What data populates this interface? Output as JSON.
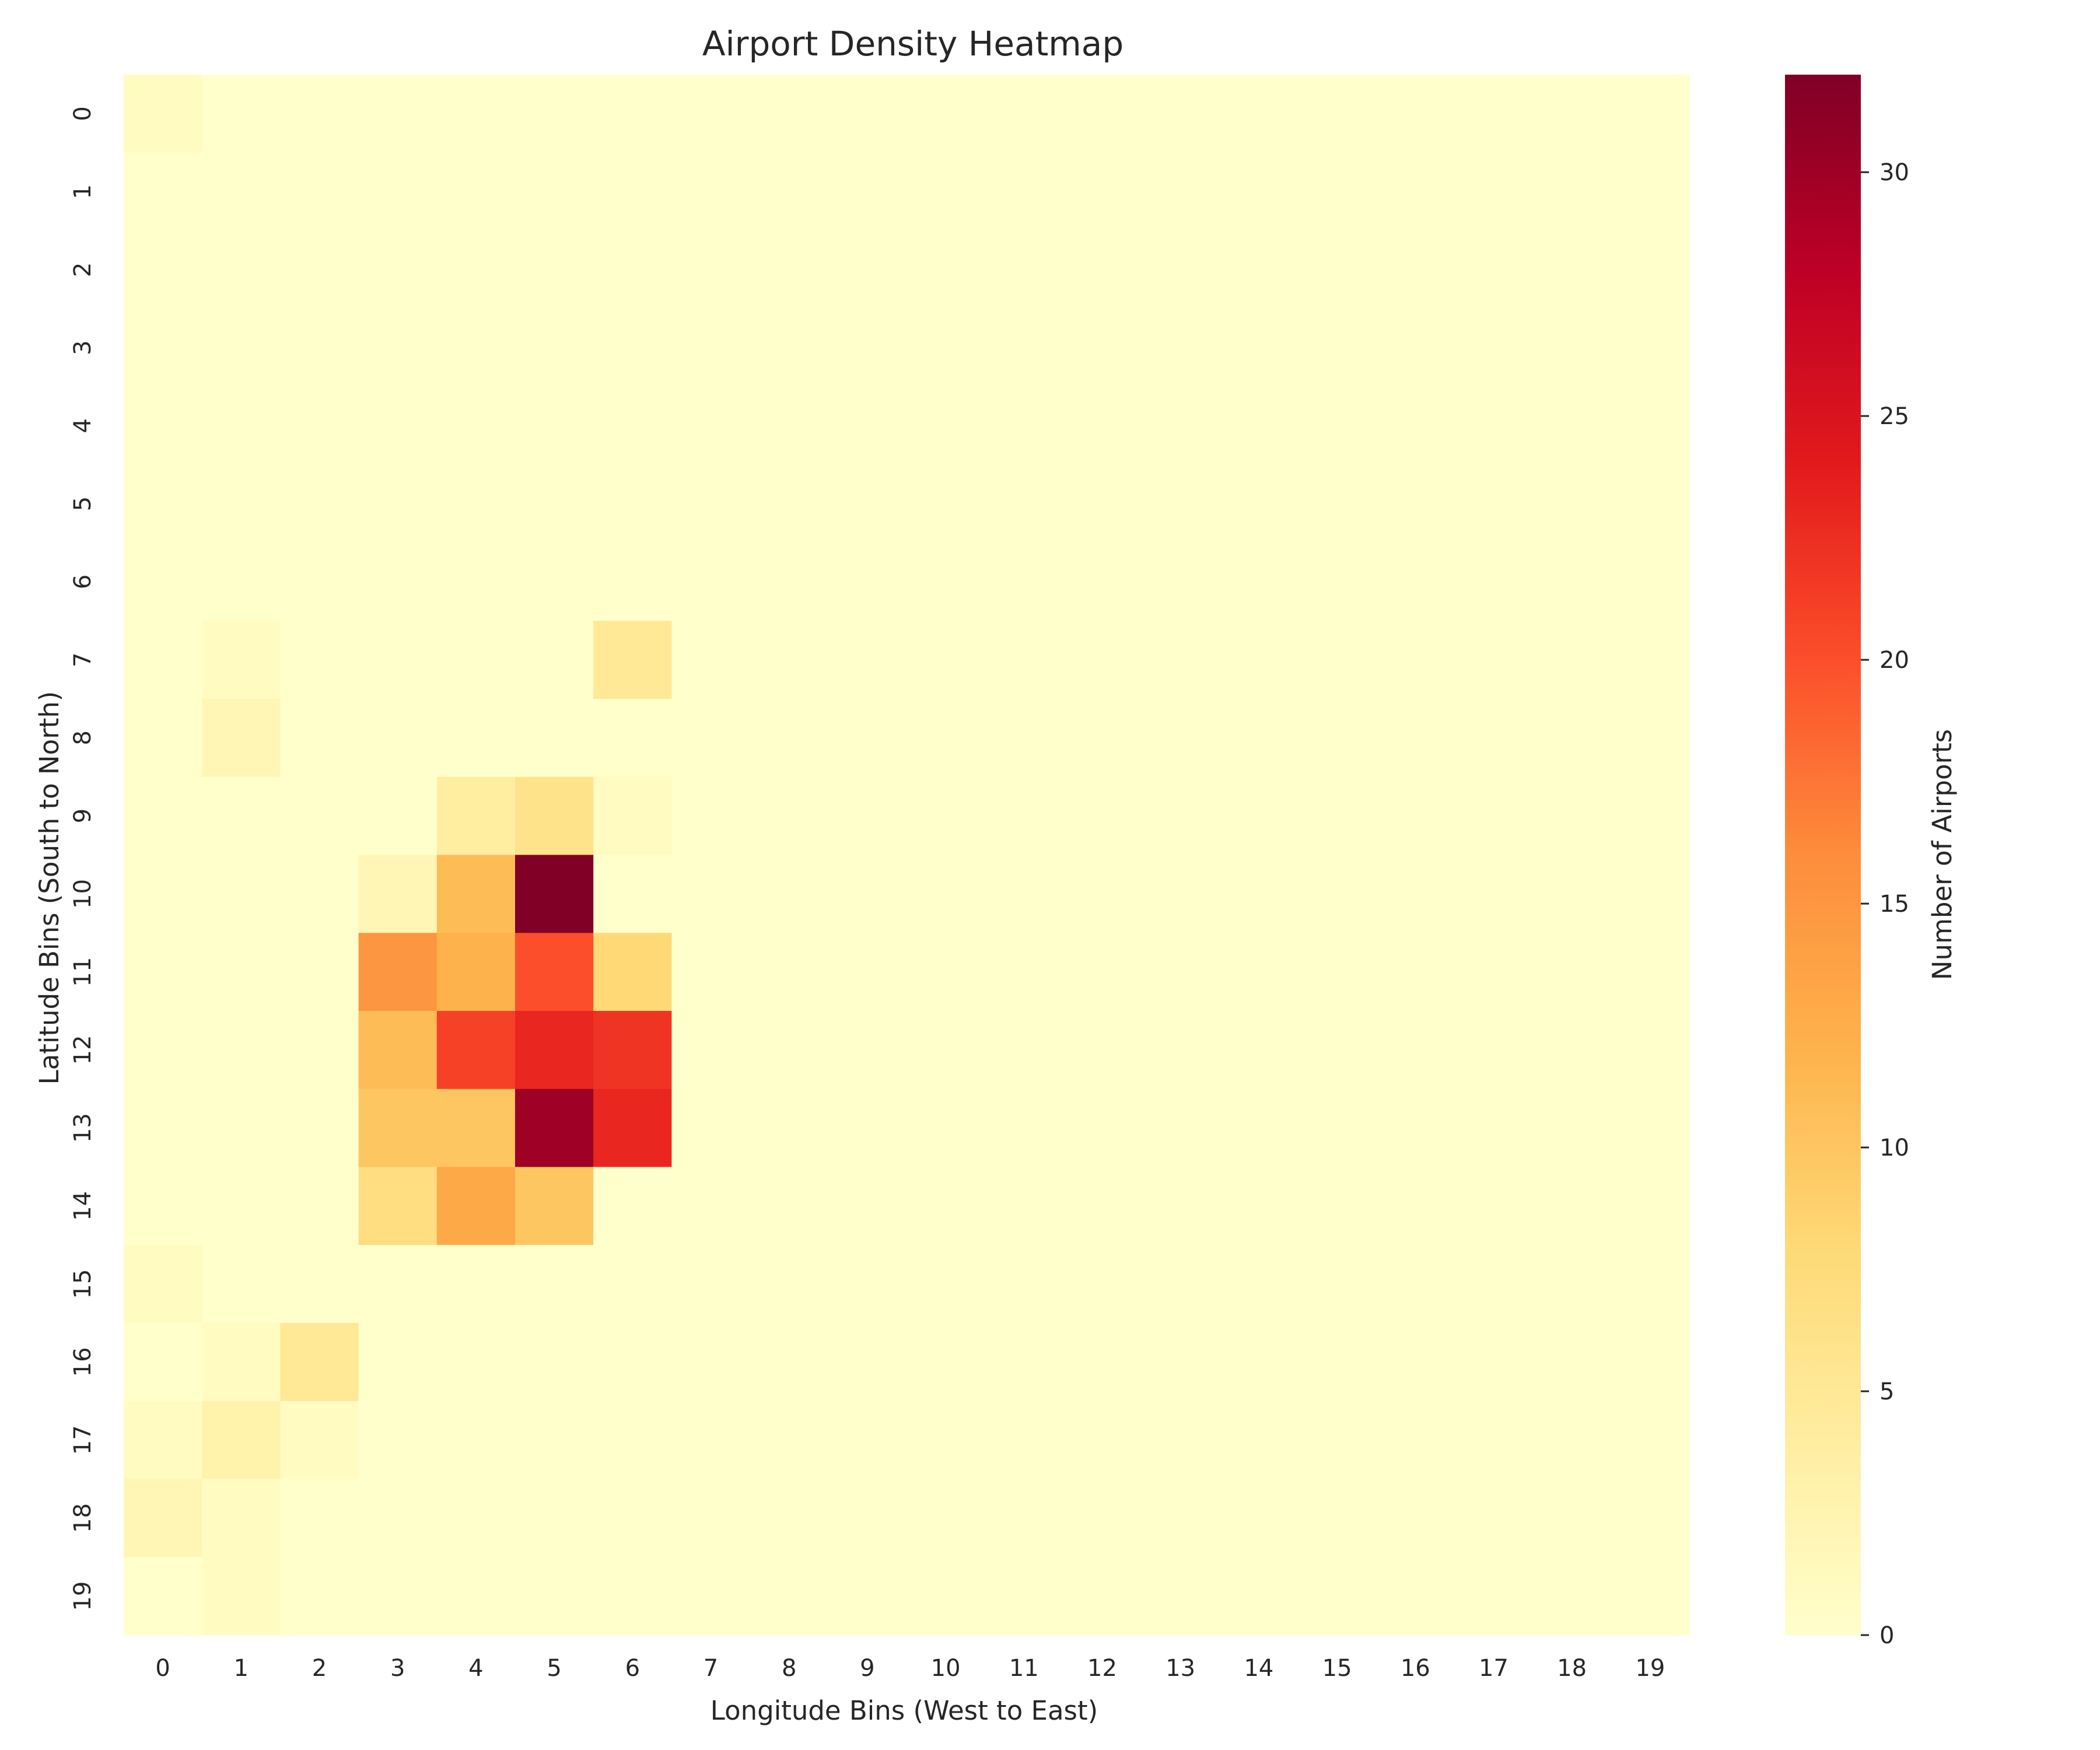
{
  "chart_data": {
    "type": "heatmap",
    "title": "Airport Density Heatmap",
    "xlabel": "Longitude Bins (West to East)",
    "ylabel": "Latitude Bins (South to North)",
    "x_categories": [
      "0",
      "1",
      "2",
      "3",
      "4",
      "5",
      "6",
      "7",
      "8",
      "9",
      "10",
      "11",
      "12",
      "13",
      "14",
      "15",
      "16",
      "17",
      "18",
      "19"
    ],
    "y_categories": [
      "0",
      "1",
      "2",
      "3",
      "4",
      "5",
      "6",
      "7",
      "8",
      "9",
      "10",
      "11",
      "12",
      "13",
      "14",
      "15",
      "16",
      "17",
      "18",
      "19"
    ],
    "colormap": "YlOrRd",
    "vmin": 0,
    "vmax": 32,
    "colorbar": {
      "label": "Number of Airports",
      "ticks": [
        0,
        5,
        10,
        15,
        20,
        25,
        30
      ]
    },
    "values": [
      [
        1,
        0,
        0,
        0,
        0,
        0,
        0,
        0,
        0,
        0,
        0,
        0,
        0,
        0,
        0,
        0,
        0,
        0,
        0,
        0
      ],
      [
        0,
        0,
        0,
        0,
        0,
        0,
        0,
        0,
        0,
        0,
        0,
        0,
        0,
        0,
        0,
        0,
        0,
        0,
        0,
        0
      ],
      [
        0,
        0,
        0,
        0,
        0,
        0,
        0,
        0,
        0,
        0,
        0,
        0,
        0,
        0,
        0,
        0,
        0,
        0,
        0,
        0
      ],
      [
        0,
        0,
        0,
        0,
        0,
        0,
        0,
        0,
        0,
        0,
        0,
        0,
        0,
        0,
        0,
        0,
        0,
        0,
        0,
        0
      ],
      [
        0,
        0,
        0,
        0,
        0,
        0,
        0,
        0,
        0,
        0,
        0,
        0,
        0,
        0,
        0,
        0,
        0,
        0,
        0,
        0
      ],
      [
        0,
        0,
        0,
        0,
        0,
        0,
        0,
        0,
        0,
        0,
        0,
        0,
        0,
        0,
        0,
        0,
        0,
        0,
        0,
        0
      ],
      [
        0,
        0,
        0,
        0,
        0,
        0,
        0,
        0,
        0,
        0,
        0,
        0,
        0,
        0,
        0,
        0,
        0,
        0,
        0,
        0
      ],
      [
        0,
        1,
        0,
        0,
        0,
        0,
        5,
        0,
        0,
        0,
        0,
        0,
        0,
        0,
        0,
        0,
        0,
        0,
        0,
        0
      ],
      [
        0,
        2,
        0,
        0,
        0,
        0,
        0,
        0,
        0,
        0,
        0,
        0,
        0,
        0,
        0,
        0,
        0,
        0,
        0,
        0
      ],
      [
        0,
        0,
        0,
        0,
        4,
        6,
        1,
        0,
        0,
        0,
        0,
        0,
        0,
        0,
        0,
        0,
        0,
        0,
        0,
        0
      ],
      [
        0,
        0,
        0,
        2,
        11,
        32,
        0,
        0,
        0,
        0,
        0,
        0,
        0,
        0,
        0,
        0,
        0,
        0,
        0,
        0
      ],
      [
        0,
        0,
        0,
        15,
        12,
        20,
        8,
        0,
        0,
        0,
        0,
        0,
        0,
        0,
        0,
        0,
        0,
        0,
        0,
        0
      ],
      [
        0,
        0,
        0,
        11,
        21,
        23,
        22,
        0,
        0,
        0,
        0,
        0,
        0,
        0,
        0,
        0,
        0,
        0,
        0,
        0
      ],
      [
        0,
        0,
        0,
        10,
        10,
        30,
        23,
        0,
        0,
        0,
        0,
        0,
        0,
        0,
        0,
        0,
        0,
        0,
        0,
        0
      ],
      [
        0,
        0,
        0,
        7,
        13,
        10,
        0,
        0,
        0,
        0,
        0,
        0,
        0,
        0,
        0,
        0,
        0,
        0,
        0,
        0
      ],
      [
        1,
        0,
        0,
        0,
        0,
        0,
        0,
        0,
        0,
        0,
        0,
        0,
        0,
        0,
        0,
        0,
        0,
        0,
        0,
        0
      ],
      [
        0,
        1,
        5,
        0,
        0,
        0,
        0,
        0,
        0,
        0,
        0,
        0,
        0,
        0,
        0,
        0,
        0,
        0,
        0,
        0
      ],
      [
        1,
        3,
        1,
        0,
        0,
        0,
        0,
        0,
        0,
        0,
        0,
        0,
        0,
        0,
        0,
        0,
        0,
        0,
        0,
        0
      ],
      [
        2,
        1,
        0,
        0,
        0,
        0,
        0,
        0,
        0,
        0,
        0,
        0,
        0,
        0,
        0,
        0,
        0,
        0,
        0,
        0
      ],
      [
        0,
        1,
        0,
        0,
        0,
        0,
        0,
        0,
        0,
        0,
        0,
        0,
        0,
        0,
        0,
        0,
        0,
        0,
        0,
        0
      ]
    ]
  }
}
